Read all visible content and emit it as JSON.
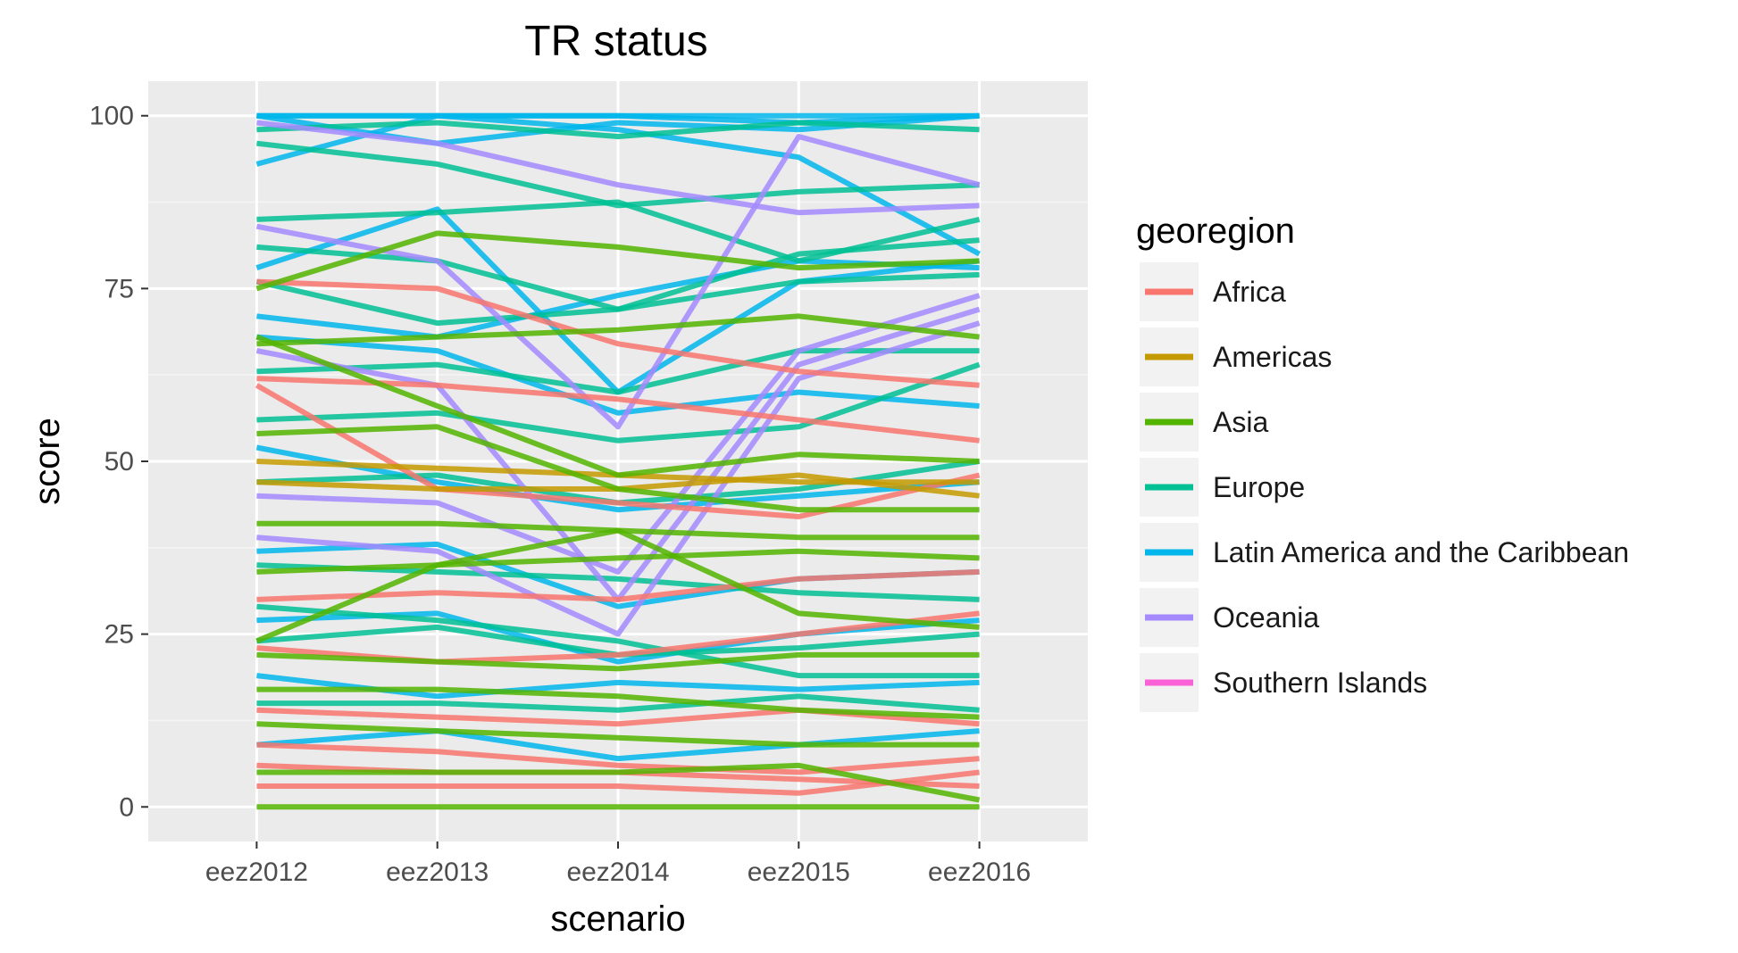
{
  "chart_data": {
    "type": "line",
    "title": "TR status",
    "xlabel": "scenario",
    "ylabel": "score",
    "categories": [
      "eez2012",
      "eez2013",
      "eez2014",
      "eez2015",
      "eez2016"
    ],
    "ylim": [
      -5,
      105
    ],
    "yticks": [
      0,
      25,
      50,
      75,
      100
    ],
    "grid": true,
    "legend_position": "right",
    "legend": {
      "title": "georegion",
      "entries": [
        {
          "name": "Africa",
          "color": "#F8766D"
        },
        {
          "name": "Americas",
          "color": "#C49A00"
        },
        {
          "name": "Asia",
          "color": "#53B400"
        },
        {
          "name": "Europe",
          "color": "#00C094"
        },
        {
          "name": "Latin America and the Caribbean",
          "color": "#00B6EB"
        },
        {
          "name": "Oceania",
          "color": "#A58AFF"
        },
        {
          "name": "Southern Islands",
          "color": "#FB61D7"
        }
      ]
    },
    "series": [
      {
        "group": "Latin America and the Caribbean",
        "values": [
          100,
          100,
          100,
          100,
          100
        ]
      },
      {
        "group": "Latin America and the Caribbean",
        "values": [
          93,
          100,
          100,
          99,
          100
        ]
      },
      {
        "group": "Latin America and the Caribbean",
        "values": [
          100,
          96,
          99,
          98,
          100
        ]
      },
      {
        "group": "Latin America and the Caribbean",
        "values": [
          100,
          100,
          98,
          94,
          80
        ]
      },
      {
        "group": "Latin America and the Caribbean",
        "values": [
          78,
          86.5,
          60,
          76,
          79
        ]
      },
      {
        "group": "Latin America and the Caribbean",
        "values": [
          71,
          68,
          74,
          79,
          78
        ]
      },
      {
        "group": "Latin America and the Caribbean",
        "values": [
          68,
          66,
          57,
          60,
          58
        ]
      },
      {
        "group": "Latin America and the Caribbean",
        "values": [
          52,
          47,
          43,
          45,
          47
        ]
      },
      {
        "group": "Latin America and the Caribbean",
        "values": [
          37,
          38,
          29,
          33,
          34
        ]
      },
      {
        "group": "Latin America and the Caribbean",
        "values": [
          27,
          28,
          21,
          25,
          27
        ]
      },
      {
        "group": "Latin America and the Caribbean",
        "values": [
          19,
          16,
          18,
          17,
          18
        ]
      },
      {
        "group": "Latin America and the Caribbean",
        "values": [
          9,
          11,
          7,
          9,
          11
        ]
      },
      {
        "group": "Europe",
        "values": [
          98,
          99,
          97,
          99,
          98
        ]
      },
      {
        "group": "Europe",
        "values": [
          96,
          93,
          87,
          89,
          90
        ]
      },
      {
        "group": "Europe",
        "values": [
          85,
          86,
          87.5,
          79,
          85
        ]
      },
      {
        "group": "Europe",
        "values": [
          81,
          79,
          72,
          80,
          82
        ]
      },
      {
        "group": "Europe",
        "values": [
          76,
          70,
          72,
          76,
          77
        ]
      },
      {
        "group": "Europe",
        "values": [
          63,
          64,
          60,
          66,
          66
        ]
      },
      {
        "group": "Europe",
        "values": [
          56,
          57,
          53,
          55,
          64
        ]
      },
      {
        "group": "Europe",
        "values": [
          47,
          48,
          44,
          46,
          50
        ]
      },
      {
        "group": "Europe",
        "values": [
          35,
          34,
          33,
          31,
          30
        ]
      },
      {
        "group": "Europe",
        "values": [
          24,
          26,
          22,
          23,
          25
        ]
      },
      {
        "group": "Europe",
        "values": [
          15,
          15,
          14,
          16,
          14
        ]
      },
      {
        "group": "Europe",
        "values": [
          29,
          27,
          24,
          19,
          19
        ]
      },
      {
        "group": "Oceania",
        "values": [
          99,
          96,
          90,
          86,
          87
        ]
      },
      {
        "group": "Oceania",
        "values": [
          84,
          79,
          55,
          97,
          90
        ]
      },
      {
        "group": "Oceania",
        "values": [
          66,
          61,
          30,
          64,
          72
        ]
      },
      {
        "group": "Oceania",
        "values": [
          45,
          44,
          34,
          66,
          74
        ]
      },
      {
        "group": "Oceania",
        "values": [
          39,
          37,
          25,
          62,
          70
        ]
      },
      {
        "group": "Africa",
        "values": [
          76,
          75,
          67,
          63,
          61
        ]
      },
      {
        "group": "Africa",
        "values": [
          62,
          61,
          59,
          56,
          53
        ]
      },
      {
        "group": "Africa",
        "values": [
          61,
          46,
          44,
          42,
          48
        ]
      },
      {
        "group": "Africa",
        "values": [
          30,
          31,
          30,
          33,
          34
        ]
      },
      {
        "group": "Africa",
        "values": [
          23,
          21,
          22,
          25,
          28
        ]
      },
      {
        "group": "Africa",
        "values": [
          14,
          13,
          12,
          14,
          12
        ]
      },
      {
        "group": "Africa",
        "values": [
          9,
          8,
          6,
          5,
          7
        ]
      },
      {
        "group": "Africa",
        "values": [
          6,
          5,
          5,
          4,
          3
        ]
      },
      {
        "group": "Africa",
        "values": [
          3,
          3,
          3,
          2,
          5
        ]
      },
      {
        "group": "Americas",
        "values": [
          50,
          49,
          48,
          47,
          47
        ]
      },
      {
        "group": "Americas",
        "values": [
          47,
          46,
          46,
          48,
          45
        ]
      },
      {
        "group": "Asia",
        "values": [
          75,
          83,
          81,
          78,
          79
        ]
      },
      {
        "group": "Asia",
        "values": [
          67,
          68,
          69,
          71,
          68
        ]
      },
      {
        "group": "Asia",
        "values": [
          68,
          58,
          48,
          51,
          50
        ]
      },
      {
        "group": "Asia",
        "values": [
          54,
          55,
          46,
          43,
          43
        ]
      },
      {
        "group": "Asia",
        "values": [
          41,
          41,
          40,
          39,
          39
        ]
      },
      {
        "group": "Asia",
        "values": [
          34,
          35,
          36,
          37,
          36
        ]
      },
      {
        "group": "Asia",
        "values": [
          24,
          35,
          40,
          28,
          26
        ]
      },
      {
        "group": "Asia",
        "values": [
          22,
          21,
          20,
          22,
          22
        ]
      },
      {
        "group": "Asia",
        "values": [
          17,
          17,
          16,
          14,
          13
        ]
      },
      {
        "group": "Asia",
        "values": [
          12,
          11,
          10,
          9,
          9
        ]
      },
      {
        "group": "Asia",
        "values": [
          5,
          5,
          5,
          6,
          1
        ]
      },
      {
        "group": "Asia",
        "values": [
          0,
          0,
          0,
          0,
          0
        ]
      }
    ]
  }
}
